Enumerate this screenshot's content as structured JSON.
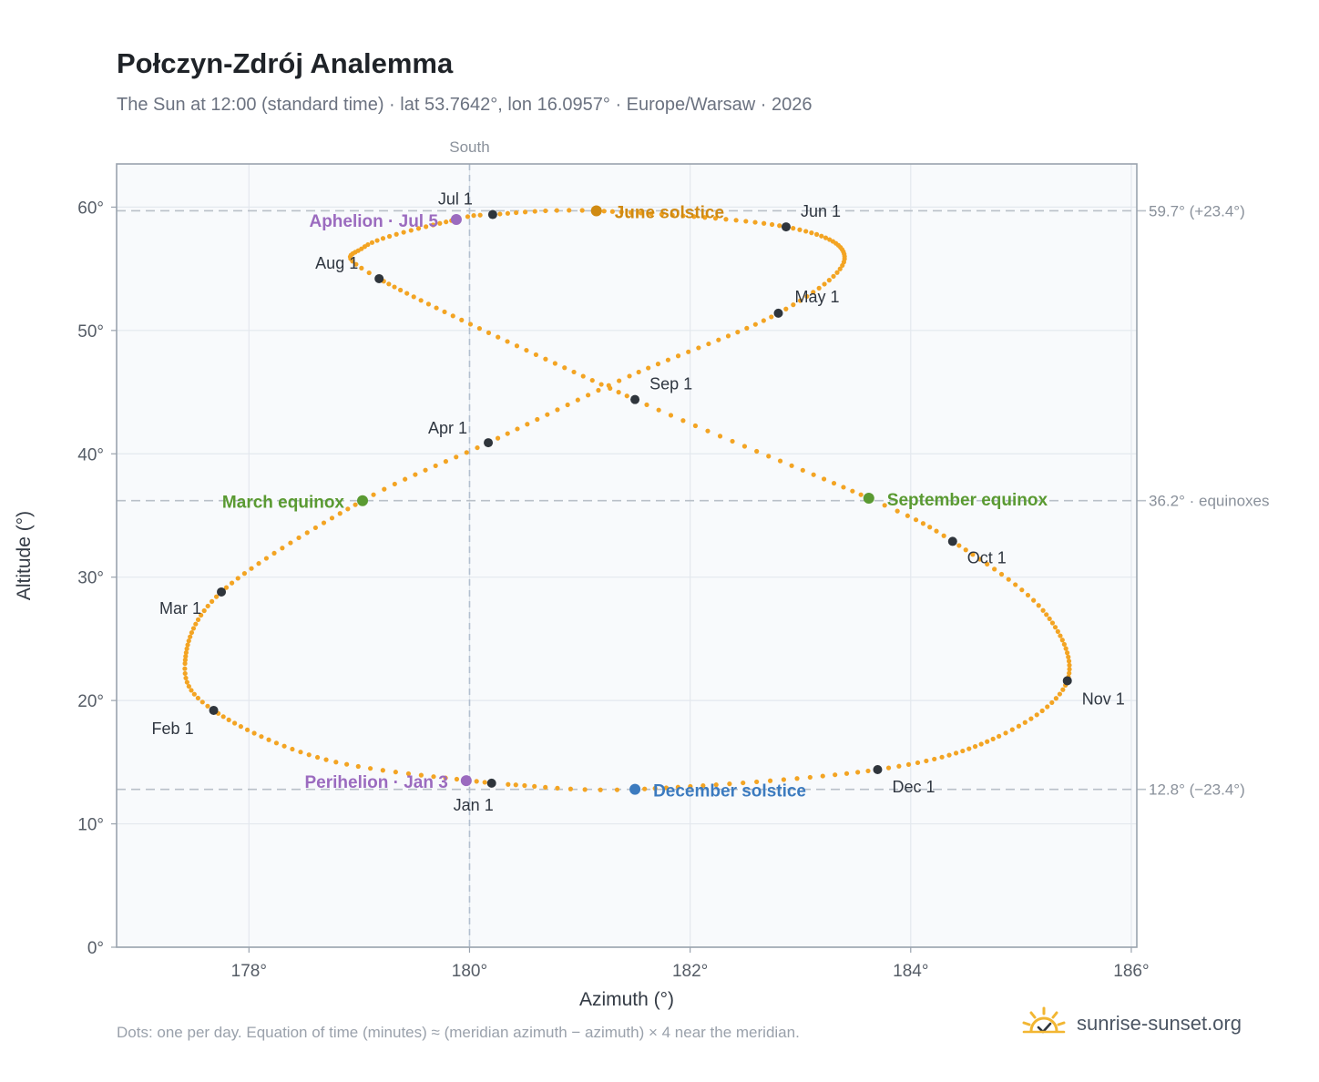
{
  "header": {
    "title": "Połczyn-Zdrój Analemma",
    "subtitle": "The Sun at 12:00 (standard time) · lat 53.7642°, lon 16.0957° · Europe/Warsaw · 2026"
  },
  "footer": {
    "note": "Dots: one per day. Equation of time (minutes) ≈ (meridian azimuth − azimuth) × 4 near the meridian.",
    "brand": "sunrise-sunset.org",
    "brand_icon": "sun-icon"
  },
  "colors": {
    "path": "#f3a423",
    "month_marker": "#2f353c",
    "june_solstice": "#d08a12",
    "december_solstice": "#3c7bbf",
    "equinox": "#5a9a32",
    "apsis": "#9b6bbf",
    "plot_bg": "#f8fafc",
    "grid": "#e3e8ee",
    "reference_line": "#b9c0c8"
  },
  "chart_data": {
    "type": "scatter",
    "xlabel": "Azimuth (°)",
    "ylabel": "Altitude (°)",
    "xlim": [
      176.8,
      186.05
    ],
    "ylim": [
      0,
      63.5
    ],
    "x_ticks": [
      178,
      180,
      182,
      184,
      186
    ],
    "y_ticks": [
      0,
      10,
      20,
      30,
      40,
      50,
      60
    ],
    "x_tick_labels": [
      "178°",
      "180°",
      "182°",
      "184°",
      "186°"
    ],
    "y_tick_labels": [
      "0°",
      "10°",
      "20°",
      "30°",
      "40°",
      "50°",
      "60°"
    ],
    "grid": true,
    "meridian": {
      "azimuth": 180,
      "label": "South"
    },
    "reference_lines": [
      {
        "altitude": 59.7,
        "label": "59.7° (+23.4°)"
      },
      {
        "altitude": 36.2,
        "label": "36.2° · equinoxes"
      },
      {
        "altitude": 12.8,
        "label": "12.8° (−23.4°)"
      }
    ],
    "month_markers": [
      {
        "label": "Jan 1",
        "azimuth": 180.2,
        "altitude": 13.3
      },
      {
        "label": "Feb 1",
        "azimuth": 177.68,
        "altitude": 19.2
      },
      {
        "label": "Mar 1",
        "azimuth": 177.75,
        "altitude": 28.8
      },
      {
        "label": "Apr 1",
        "azimuth": 180.17,
        "altitude": 40.9
      },
      {
        "label": "May 1",
        "azimuth": 182.8,
        "altitude": 51.4
      },
      {
        "label": "Jun 1",
        "azimuth": 182.87,
        "altitude": 58.4
      },
      {
        "label": "Jul 1",
        "azimuth": 180.21,
        "altitude": 59.4
      },
      {
        "label": "Aug 1",
        "azimuth": 179.18,
        "altitude": 54.2
      },
      {
        "label": "Sep 1",
        "azimuth": 181.5,
        "altitude": 44.4
      },
      {
        "label": "Oct 1",
        "azimuth": 184.38,
        "altitude": 32.9
      },
      {
        "label": "Nov 1",
        "azimuth": 185.42,
        "altitude": 21.6
      },
      {
        "label": "Dec 1",
        "azimuth": 183.7,
        "altitude": 14.4
      }
    ],
    "events": [
      {
        "label": "June solstice",
        "azimuth": 181.15,
        "altitude": 59.7,
        "color_key": "june_solstice"
      },
      {
        "label": "December solstice",
        "azimuth": 181.5,
        "altitude": 12.8,
        "color_key": "december_solstice"
      },
      {
        "label": "March equinox",
        "azimuth": 179.03,
        "altitude": 36.2,
        "color_key": "equinox"
      },
      {
        "label": "September equinox",
        "azimuth": 183.62,
        "altitude": 36.4,
        "color_key": "equinox"
      },
      {
        "label": "Aphelion · Jul 5",
        "azimuth": 179.88,
        "altitude": 59.0,
        "color_key": "apsis"
      },
      {
        "label": "Perihelion · Jan 3",
        "azimuth": 179.97,
        "altitude": 13.5,
        "color_key": "apsis"
      }
    ],
    "path_anchors": [
      {
        "month": 1,
        "day": 1,
        "azimuth": 180.2,
        "altitude": 13.3
      },
      {
        "month": 1,
        "day": 16,
        "azimuth": 178.7,
        "altitude": 15.2
      },
      {
        "month": 2,
        "day": 1,
        "azimuth": 177.68,
        "altitude": 19.2
      },
      {
        "month": 2,
        "day": 12,
        "azimuth": 177.42,
        "altitude": 23.0
      },
      {
        "month": 3,
        "day": 1,
        "azimuth": 177.75,
        "altitude": 28.8
      },
      {
        "month": 3,
        "day": 20,
        "azimuth": 179.03,
        "altitude": 36.2
      },
      {
        "month": 4,
        "day": 1,
        "azimuth": 180.17,
        "altitude": 40.9
      },
      {
        "month": 4,
        "day": 15,
        "azimuth": 181.45,
        "altitude": 46.3
      },
      {
        "month": 5,
        "day": 1,
        "azimuth": 182.8,
        "altitude": 51.4
      },
      {
        "month": 5,
        "day": 15,
        "azimuth": 183.4,
        "altitude": 55.8
      },
      {
        "month": 6,
        "day": 1,
        "azimuth": 182.87,
        "altitude": 58.4
      },
      {
        "month": 6,
        "day": 21,
        "azimuth": 181.15,
        "altitude": 59.7
      },
      {
        "month": 7,
        "day": 1,
        "azimuth": 180.21,
        "altitude": 59.4
      },
      {
        "month": 7,
        "day": 5,
        "azimuth": 179.88,
        "altitude": 59.0
      },
      {
        "month": 7,
        "day": 20,
        "azimuth": 179.05,
        "altitude": 56.8
      },
      {
        "month": 8,
        "day": 1,
        "azimuth": 179.18,
        "altitude": 54.2
      },
      {
        "month": 9,
        "day": 1,
        "azimuth": 181.5,
        "altitude": 44.4
      },
      {
        "month": 9,
        "day": 22,
        "azimuth": 183.62,
        "altitude": 36.4
      },
      {
        "month": 10,
        "day": 1,
        "azimuth": 184.38,
        "altitude": 32.9
      },
      {
        "month": 10,
        "day": 15,
        "azimuth": 185.2,
        "altitude": 27.3
      },
      {
        "month": 11,
        "day": 1,
        "azimuth": 185.42,
        "altitude": 21.6
      },
      {
        "month": 11,
        "day": 15,
        "azimuth": 184.8,
        "altitude": 17.1
      },
      {
        "month": 12,
        "day": 1,
        "azimuth": 183.7,
        "altitude": 14.4
      },
      {
        "month": 12,
        "day": 21,
        "azimuth": 181.5,
        "altitude": 12.8
      },
      {
        "month": 12,
        "day": 31,
        "azimuth": 180.35,
        "altitude": 13.2
      }
    ]
  }
}
